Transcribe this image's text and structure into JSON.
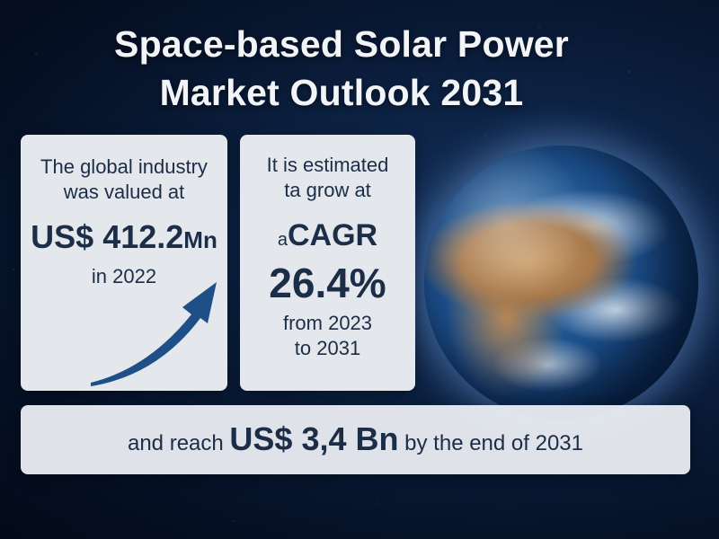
{
  "title": {
    "line1": "Space-based Solar Power",
    "line2": "Market Outlook 2031"
  },
  "card_valuation": {
    "line1": "The global industry",
    "line2": "was valued at",
    "amount": "US$ 412.2",
    "unit": "Mn",
    "year": "in 2022",
    "icon": "upward-trend-arrow"
  },
  "card_growth": {
    "line1": "It is estimated",
    "line2": "ta grow at",
    "prefix": "a",
    "label": "CAGR",
    "rate": "26.4%",
    "line3": "from 2023",
    "line4": "to 2031"
  },
  "card_forecast": {
    "before": "and reach",
    "amount": "US$ 3,4 Bn",
    "after": "by the end of 2031"
  },
  "colors": {
    "background": "#0c2142",
    "card": "#e4e7ec",
    "text_dark": "#1c2d47",
    "arrow": "#1e4f86",
    "title": "#f2f4f8"
  }
}
